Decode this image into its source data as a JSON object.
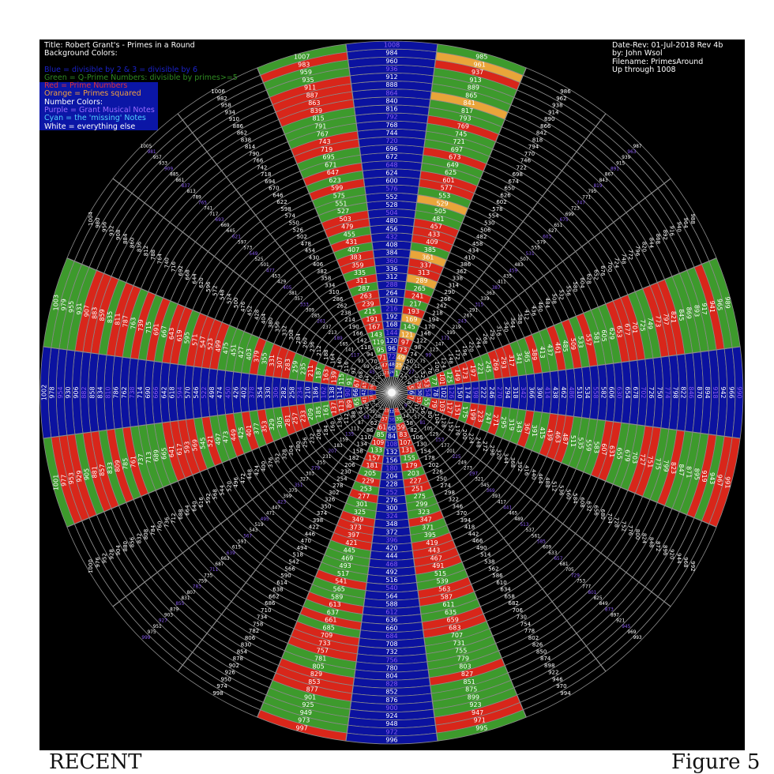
{
  "legend": {
    "title": "Title: Robert Grant's - Primes in a Round",
    "background_heading": "Background Colors:",
    "blue": "Blue = divisible by 2 & 3 = divisible by 6",
    "green": "Green = Q-Prime Numbers: divisible by primes>=5",
    "red": "Red = Prime Numbers",
    "orange": "Orange = Primes squared",
    "number_heading": "Number Colors:",
    "purple": "Purple = Grant Musical Notes",
    "cyan": "Cyan = the 'missing' Notes",
    "white": "White = everything else"
  },
  "info": {
    "date_rev": "Date-Rev: 01-Jul-2018  Rev 4b",
    "author": "by: John Wsol",
    "filename": "Filename: PrimesAround",
    "range": "Up through 1008"
  },
  "footer": {
    "left": "RECENT",
    "right": "Figure 5"
  },
  "colors": {
    "blue": "#0b12a0",
    "green": "#3d9a2c",
    "red": "#d8261a",
    "orange": "#e9a53a",
    "purple": "#8a5cf0",
    "cyan": "#3fd3f0",
    "white": "#ffffff",
    "grid": "#8a8a8a"
  },
  "chart_data": {
    "type": "polar number wheel",
    "spokes": 24,
    "first_number": 1,
    "last_number": 1008,
    "spoke_at_top": 24,
    "direction": "clockwise",
    "spoke_background_rules": {
      "divisible_by_6": "blue",
      "coprime_to_6_composite": "green",
      "prime": "red",
      "prime_squared": "orange",
      "other": "black"
    },
    "number_color_rules": {
      "divisible_by_9": "purple",
      "missing_notes": "cyan",
      "other": "white"
    }
  }
}
